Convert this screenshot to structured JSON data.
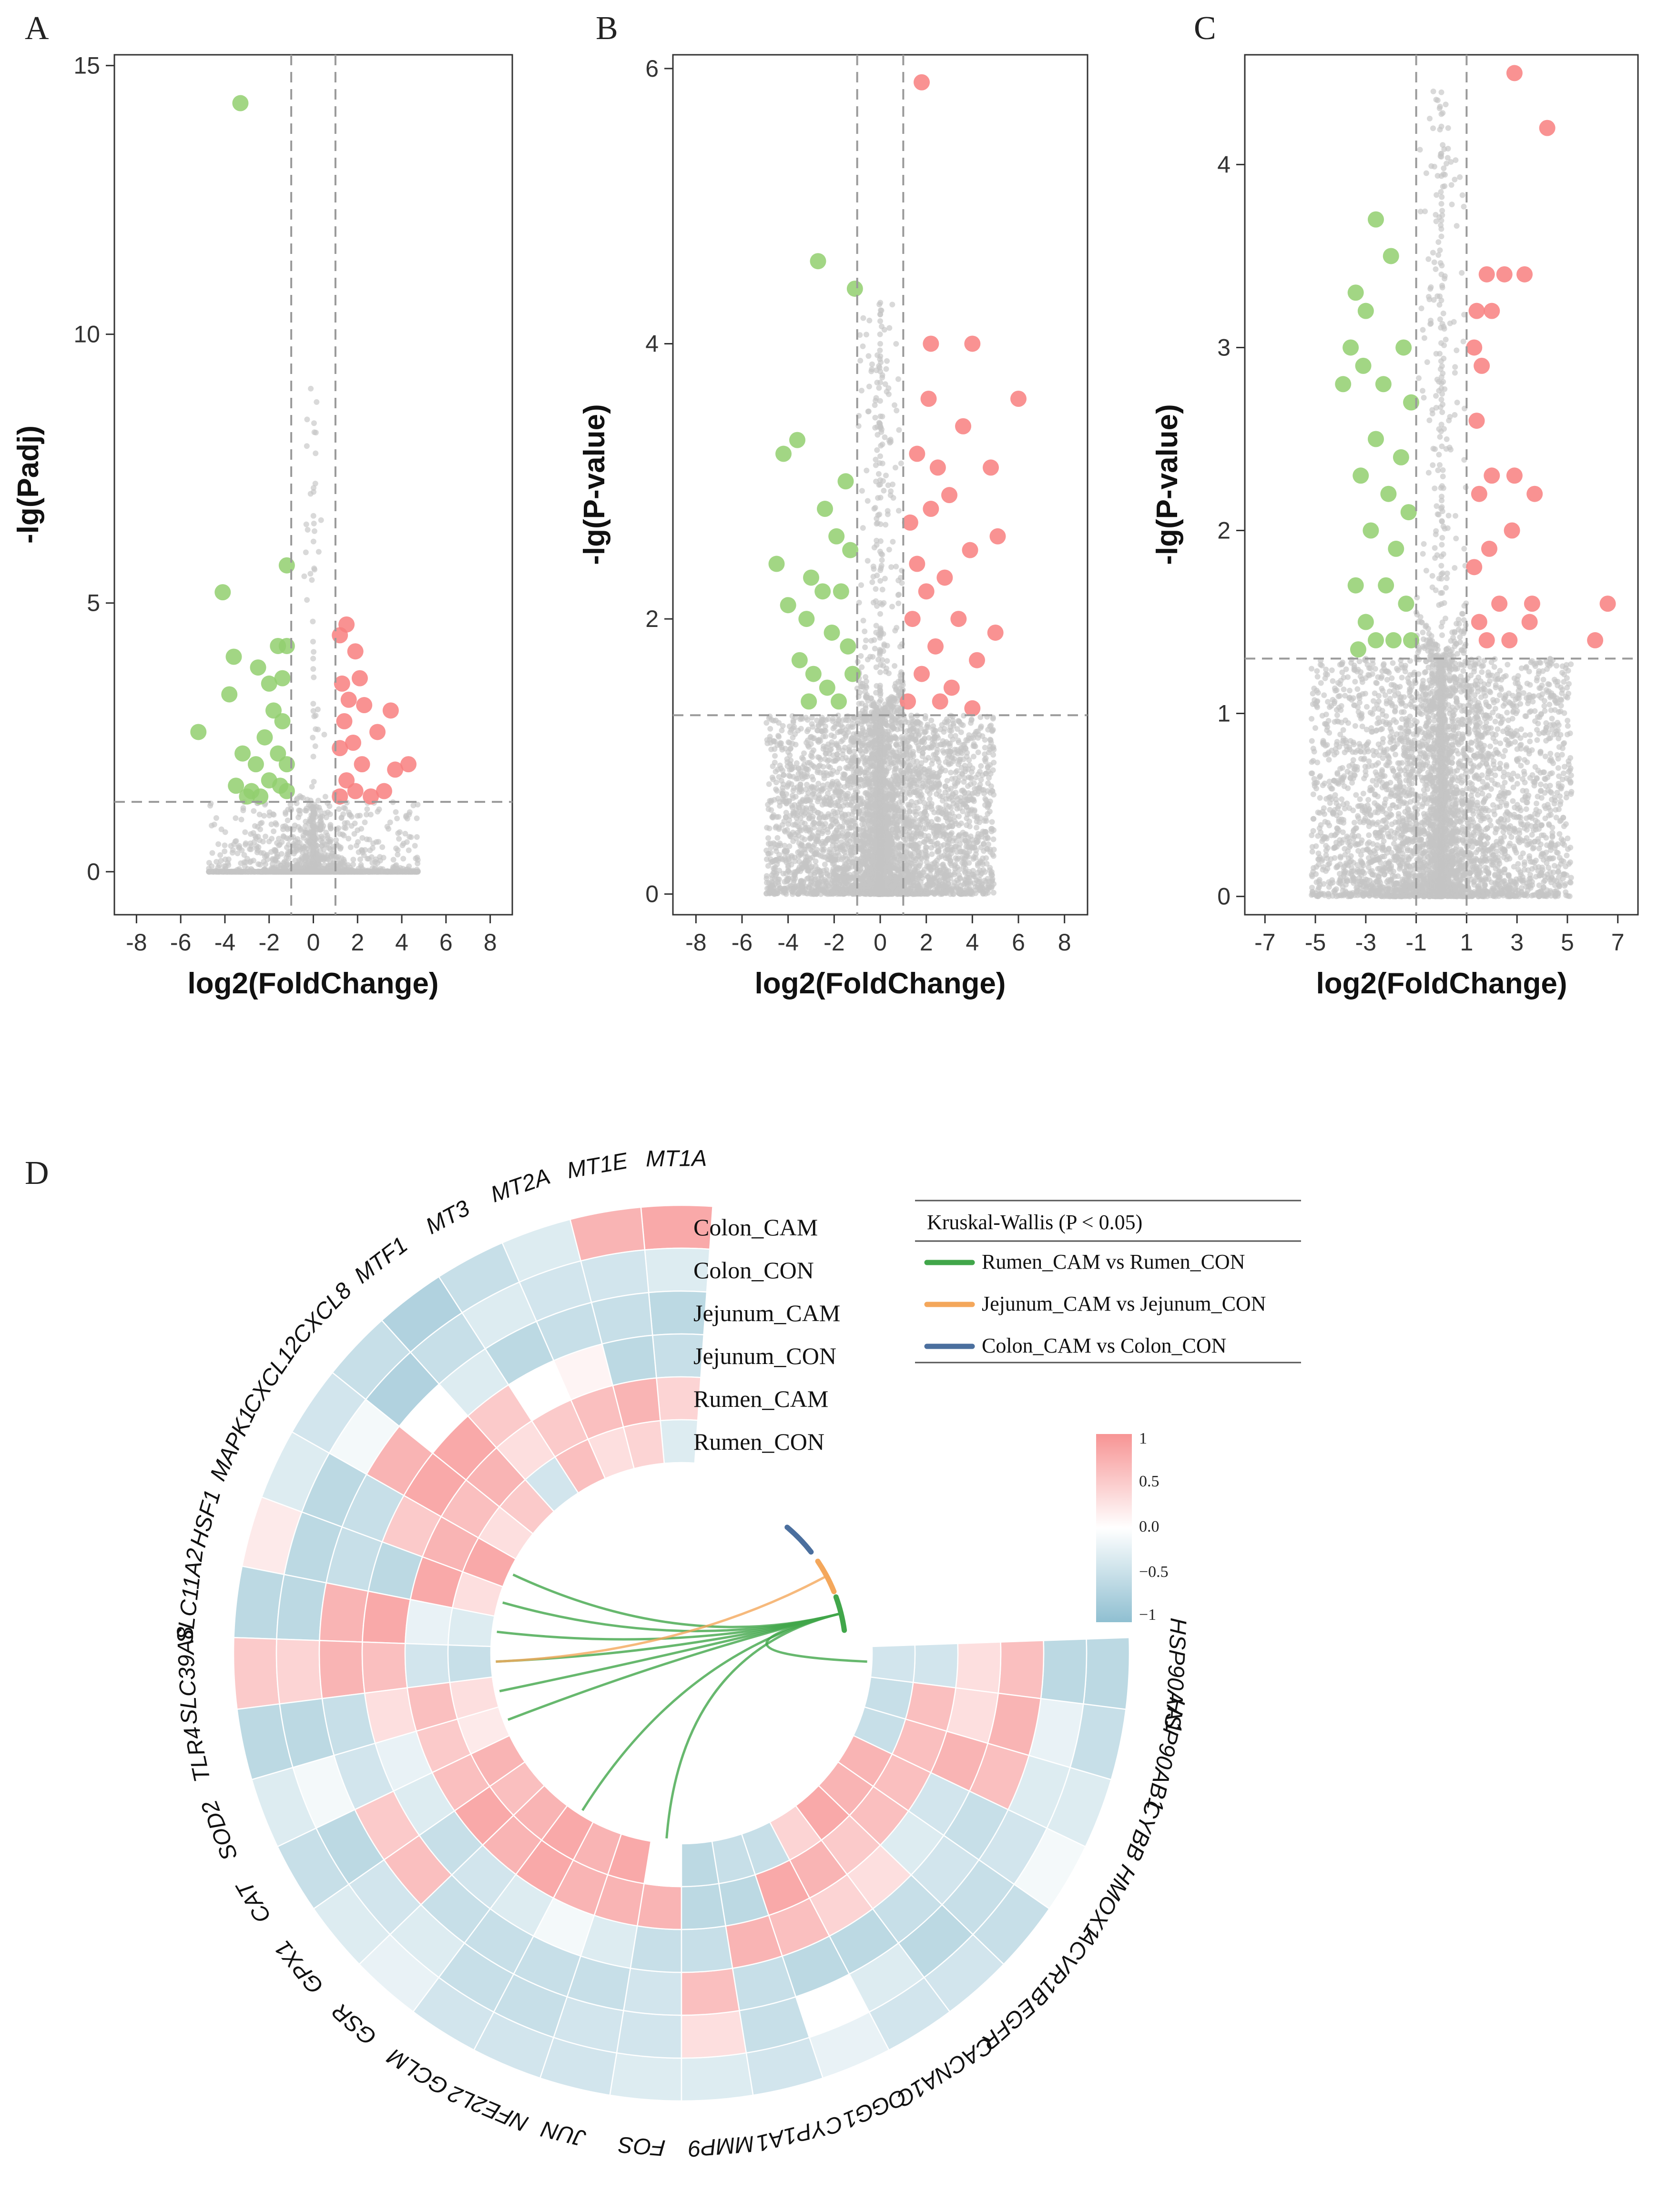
{
  "chart_data": [
    {
      "type": "scatter",
      "panel": "A",
      "xlabel": "log2(FoldChange)",
      "ylabel": "-lg(Padj)",
      "xlim": [
        -9,
        9
      ],
      "ylim": [
        -0.8,
        15.2
      ],
      "xticks": [
        -8,
        -6,
        -4,
        -2,
        0,
        2,
        4,
        6,
        8
      ],
      "yticks": [
        0,
        5,
        10,
        15
      ],
      "vlines": [
        -1,
        1
      ],
      "hline": 1.3,
      "colors": {
        "up": "#f87f7f",
        "down": "#92cf6f",
        "ns": "#c4c4c4"
      },
      "points": {
        "down": [
          [
            -3.3,
            14.3
          ],
          [
            -1.2,
            5.7
          ],
          [
            -4.1,
            5.2
          ],
          [
            -3.6,
            4
          ],
          [
            -1.6,
            4.2
          ],
          [
            -1.2,
            4.2
          ],
          [
            -2.5,
            3.8
          ],
          [
            -2,
            3.5
          ],
          [
            -3.8,
            3.3
          ],
          [
            -1.4,
            3.6
          ],
          [
            -5.2,
            2.6
          ],
          [
            -1.8,
            3
          ],
          [
            -2.2,
            2.5
          ],
          [
            -1.4,
            2.8
          ],
          [
            -3.2,
            2.2
          ],
          [
            -2.6,
            2
          ],
          [
            -1.6,
            2.2
          ],
          [
            -1.2,
            2
          ],
          [
            -3.5,
            1.6
          ],
          [
            -2.8,
            1.5
          ],
          [
            -2,
            1.7
          ],
          [
            -1.5,
            1.6
          ],
          [
            -1.2,
            1.5
          ],
          [
            -3,
            1.4
          ],
          [
            -2.4,
            1.4
          ]
        ],
        "up": [
          [
            1.5,
            4.6
          ],
          [
            1.2,
            4.4
          ],
          [
            1.9,
            4.1
          ],
          [
            2.1,
            3.6
          ],
          [
            1.3,
            3.5
          ],
          [
            1.6,
            3.2
          ],
          [
            3.5,
            3
          ],
          [
            2.3,
            3.1
          ],
          [
            1.4,
            2.8
          ],
          [
            2.9,
            2.6
          ],
          [
            1.8,
            2.4
          ],
          [
            4.3,
            2
          ],
          [
            1.2,
            2.3
          ],
          [
            3.7,
            1.9
          ],
          [
            2.2,
            2
          ],
          [
            1.5,
            1.7
          ],
          [
            1.9,
            1.5
          ],
          [
            2.6,
            1.4
          ],
          [
            1.2,
            1.4
          ],
          [
            3.2,
            1.5
          ]
        ]
      }
    },
    {
      "type": "scatter",
      "panel": "B",
      "xlabel": "log2(FoldChange)",
      "ylabel": "-lg(P-value)",
      "xlim": [
        -9,
        9
      ],
      "ylim": [
        -0.15,
        6.1
      ],
      "xticks": [
        -8,
        -6,
        -4,
        -2,
        0,
        2,
        4,
        6,
        8
      ],
      "yticks": [
        0,
        2,
        4,
        6
      ],
      "vlines": [
        -1,
        1
      ],
      "hline": 1.3,
      "colors": {
        "up": "#f87f7f",
        "down": "#92cf6f",
        "ns": "#c4c4c4"
      },
      "points": {
        "down": [
          [
            -2.7,
            4.6
          ],
          [
            -1.1,
            4.4
          ],
          [
            -3.6,
            3.3
          ],
          [
            -4.2,
            3.2
          ],
          [
            -1.5,
            3
          ],
          [
            -2.4,
            2.8
          ],
          [
            -1.9,
            2.6
          ],
          [
            -3,
            2.3
          ],
          [
            -1.3,
            2.5
          ],
          [
            -2.5,
            2.2
          ],
          [
            -4,
            2.1
          ],
          [
            -3.2,
            2
          ],
          [
            -1.7,
            2.2
          ],
          [
            -2.1,
            1.9
          ],
          [
            -3.5,
            1.7
          ],
          [
            -2.9,
            1.6
          ],
          [
            -1.4,
            1.8
          ],
          [
            -1.2,
            1.6
          ],
          [
            -2.3,
            1.5
          ],
          [
            -3.1,
            1.4
          ],
          [
            -1.8,
            1.4
          ],
          [
            -4.5,
            2.4
          ]
        ],
        "up": [
          [
            1.8,
            5.9
          ],
          [
            2.2,
            4
          ],
          [
            4,
            4
          ],
          [
            2.1,
            3.6
          ],
          [
            6,
            3.6
          ],
          [
            3.6,
            3.4
          ],
          [
            1.6,
            3.2
          ],
          [
            2.5,
            3.1
          ],
          [
            4.8,
            3.1
          ],
          [
            3,
            2.9
          ],
          [
            2.2,
            2.8
          ],
          [
            1.3,
            2.7
          ],
          [
            5.1,
            2.6
          ],
          [
            3.9,
            2.5
          ],
          [
            1.6,
            2.4
          ],
          [
            2.8,
            2.3
          ],
          [
            2,
            2.2
          ],
          [
            3.4,
            2
          ],
          [
            1.4,
            2
          ],
          [
            4.2,
            1.7
          ],
          [
            2.4,
            1.8
          ],
          [
            1.8,
            1.6
          ],
          [
            5,
            1.9
          ],
          [
            3.1,
            1.5
          ],
          [
            1.2,
            1.4
          ],
          [
            2.6,
            1.4
          ],
          [
            4,
            1.35
          ]
        ]
      }
    },
    {
      "type": "scatter",
      "panel": "C",
      "xlabel": "log2(FoldChange)",
      "ylabel": "-lg(P-value)",
      "xlim": [
        -7.8,
        7.8
      ],
      "ylim": [
        -0.1,
        4.6
      ],
      "xticks": [
        -7,
        -5,
        -3,
        -1,
        1,
        3,
        5,
        7
      ],
      "yticks": [
        0,
        1,
        2,
        3,
        4
      ],
      "vlines": [
        -1,
        1
      ],
      "hline": 1.3,
      "colors": {
        "up": "#f87f7f",
        "down": "#92cf6f",
        "ns": "#c4c4c4"
      },
      "points": {
        "down": [
          [
            -2.6,
            3.7
          ],
          [
            -2,
            3.5
          ],
          [
            -3.4,
            3.3
          ],
          [
            -3,
            3.2
          ],
          [
            -1.5,
            3
          ],
          [
            -3.6,
            3
          ],
          [
            -2.3,
            2.8
          ],
          [
            -3.1,
            2.9
          ],
          [
            -1.2,
            2.7
          ],
          [
            -3.9,
            2.8
          ],
          [
            -2.6,
            2.5
          ],
          [
            -1.6,
            2.4
          ],
          [
            -3.2,
            2.3
          ],
          [
            -2.1,
            2.2
          ],
          [
            -1.3,
            2.1
          ],
          [
            -2.8,
            2
          ],
          [
            -1.8,
            1.9
          ],
          [
            -3.4,
            1.7
          ],
          [
            -2.2,
            1.7
          ],
          [
            -1.4,
            1.6
          ],
          [
            -3,
            1.5
          ],
          [
            -2.6,
            1.4
          ],
          [
            -1.9,
            1.4
          ],
          [
            -3.3,
            1.35
          ],
          [
            -1.2,
            1.4
          ]
        ],
        "up": [
          [
            2.9,
            4.5
          ],
          [
            4.2,
            4.2
          ],
          [
            1.8,
            3.4
          ],
          [
            2.5,
            3.4
          ],
          [
            3.3,
            3.4
          ],
          [
            1.4,
            3.2
          ],
          [
            2,
            3.2
          ],
          [
            1.3,
            3
          ],
          [
            1.6,
            2.9
          ],
          [
            1.4,
            2.6
          ],
          [
            2.9,
            2.3
          ],
          [
            2,
            2.3
          ],
          [
            3.7,
            2.2
          ],
          [
            1.5,
            2.2
          ],
          [
            2.8,
            2
          ],
          [
            1.9,
            1.9
          ],
          [
            1.3,
            1.8
          ],
          [
            3.6,
            1.6
          ],
          [
            2.3,
            1.6
          ],
          [
            1.5,
            1.5
          ],
          [
            6.6,
            1.6
          ],
          [
            6.1,
            1.4
          ],
          [
            2.7,
            1.4
          ],
          [
            1.8,
            1.4
          ],
          [
            3.5,
            1.5
          ]
        ]
      }
    },
    {
      "type": "heatmap",
      "panel": "D",
      "layout": "circular",
      "genes": [
        "MT1A",
        "MT1E",
        "MT2A",
        "MT3",
        "MTF1",
        "CXCL8",
        "CXCL12",
        "MAPK1",
        "HSF1",
        "SLC11A2",
        "SLC39A8",
        "TLR4",
        "SOD2",
        "CAT",
        "GPX1",
        "GSR",
        "GCLM",
        "NFE2L2",
        "JUN",
        "FOS",
        "MMP9",
        "CYP1A1",
        "OGG1",
        "CACNA1C",
        "EGFR",
        "ACVR1B",
        "HMOX1",
        "CYBB",
        "HSP90AB1",
        "HSP90AA1"
      ],
      "rows": [
        "Colon_CAM",
        "Colon_CON",
        "Jejunum_CAM",
        "Jejunum_CON",
        "Rumen_CAM",
        "Rumen_CON"
      ],
      "values": [
        [
          0.8,
          -0.3,
          -0.6,
          -0.5,
          0.4,
          -0.3
        ],
        [
          0.7,
          -0.4,
          -0.5,
          -0.6,
          0.7,
          0.4
        ],
        [
          -0.3,
          -0.4,
          -0.5,
          0.1,
          0.6,
          0.3
        ],
        [
          -0.5,
          -0.3,
          -0.6,
          0,
          0.5,
          0.6
        ],
        [
          -0.7,
          -0.5,
          -0.3,
          0.5,
          0.3,
          -0.4
        ],
        [
          -0.5,
          -0.7,
          0,
          0.8,
          0.7,
          0.5
        ],
        [
          -0.4,
          -0.1,
          0.7,
          0.8,
          0.6,
          0.3
        ],
        [
          -0.3,
          -0.6,
          -0.5,
          0.5,
          0.7,
          0.8
        ],
        [
          0.2,
          -0.6,
          -0.5,
          -0.6,
          0.8,
          0.3
        ],
        [
          -0.6,
          -0.6,
          0.7,
          0.8,
          -0.2,
          -0.3
        ],
        [
          0.5,
          0.4,
          0.7,
          0.6,
          -0.4,
          -0.5
        ],
        [
          -0.6,
          -0.6,
          -0.5,
          0.3,
          0.6,
          0.3
        ],
        [
          -0.3,
          -0.1,
          -0.4,
          -0.2,
          0.5,
          0.2
        ],
        [
          -0.5,
          -0.6,
          0.5,
          -0.3,
          0.6,
          0.7
        ],
        [
          -0.3,
          -0.4,
          0.6,
          -0.5,
          0.8,
          0.6
        ],
        [
          -0.2,
          -0.3,
          -0.5,
          -0.4,
          0.7,
          0.7
        ],
        [
          -0.4,
          -0.5,
          -0.5,
          -0.3,
          0.8,
          0.8
        ],
        [
          -0.4,
          -0.5,
          -0.5,
          -0.1,
          0.7,
          0.7
        ],
        [
          -0.4,
          -0.4,
          -0.5,
          -0.3,
          0.7,
          0.8
        ],
        [
          -0.3,
          -0.4,
          -0.4,
          -0.5,
          0.7,
          0
        ],
        [
          -0.3,
          0.3,
          0.6,
          -0.5,
          -0.6,
          -0.6
        ],
        [
          -0.4,
          -0.5,
          -0.5,
          0.7,
          -0.6,
          -0.5
        ],
        [
          -0.2,
          0,
          -0.6,
          0.6,
          0.8,
          -0.5
        ],
        [
          -0.4,
          -0.3,
          -0.6,
          0.4,
          0.7,
          0.4
        ],
        [
          -0.4,
          -0.6,
          -0.5,
          0.3,
          0.5,
          0.8
        ],
        [
          -0.5,
          -0.5,
          -0.4,
          -0.3,
          0.6,
          0.7
        ],
        [
          -0.1,
          -0.4,
          -0.5,
          -0.4,
          0.6,
          0.7
        ],
        [
          -0.3,
          -0.3,
          0.6,
          0.7,
          0.6,
          -0.5
        ],
        [
          -0.5,
          -0.2,
          0.7,
          0.3,
          0.6,
          -0.5
        ],
        [
          -0.6,
          -0.6,
          0.6,
          0.3,
          -0.4,
          -0.4
        ]
      ],
      "colorbar": {
        "ticks": [
          "1",
          "0.5",
          "0.0",
          "−0.5",
          "−1"
        ],
        "high": "#f79494",
        "mid": "#ffffff",
        "low": "#8fbfd1"
      },
      "legend": {
        "title": "Kruskal-Wallis (P < 0.05)",
        "entries": [
          {
            "label": "Rumen_CAM vs Rumen_CON",
            "color": "#41a64a"
          },
          {
            "label": "Jejunum_CAM vs Jejunum_CON",
            "color": "#f4a75b"
          },
          {
            "label": "Colon_CAM vs Colon_CON",
            "color": "#4b6f9e"
          }
        ]
      },
      "links": {
        "Rumen_CAM vs Rumen_CON": [
          "MAPK1",
          "HSF1",
          "SLC11A2",
          "SLC39A8",
          "TLR4",
          "SOD2",
          "GCLM",
          "FOS",
          "HSP90AA1"
        ],
        "Jejunum_CAM vs Jejunum_CON": [
          "SLC39A8"
        ],
        "Colon_CAM vs Colon_CON": []
      }
    }
  ],
  "panels": {
    "A": {
      "letter": "A"
    },
    "B": {
      "letter": "B"
    },
    "C": {
      "letter": "C"
    },
    "D": {
      "letter": "D"
    }
  }
}
